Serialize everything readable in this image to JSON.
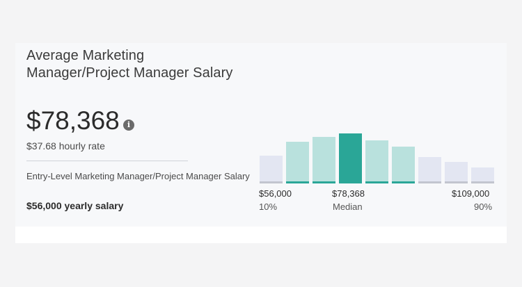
{
  "title": "Average Marketing Manager/Project Manager Salary",
  "average_salary": "$78,368",
  "info_icon": "info-icon",
  "hourly_rate": "$37.68 hourly rate",
  "entry_level": {
    "label": "Entry-Level Marketing Manager/Project Manager Salary",
    "value": "$56,000 yearly salary"
  },
  "chart_data": {
    "type": "bar",
    "series": [
      {
        "values": [
          0.5,
          0.75,
          0.85,
          0.91,
          0.78,
          0.67,
          0.48,
          0.39,
          0.28
        ]
      }
    ],
    "highlight_index": 3,
    "range_indices": [
      1,
      5
    ],
    "markers": [
      {
        "value": "$56,000",
        "label": "10%"
      },
      {
        "value": "$78,368",
        "label": "Median"
      },
      {
        "value": "$109,000",
        "label": "90%"
      }
    ],
    "colors": {
      "outside": "#e3e6f2",
      "range": "#b9e1dd",
      "median": "#2aa697",
      "baseline_outside": "#c2c5cf",
      "baseline_range": "#2aa697"
    }
  }
}
